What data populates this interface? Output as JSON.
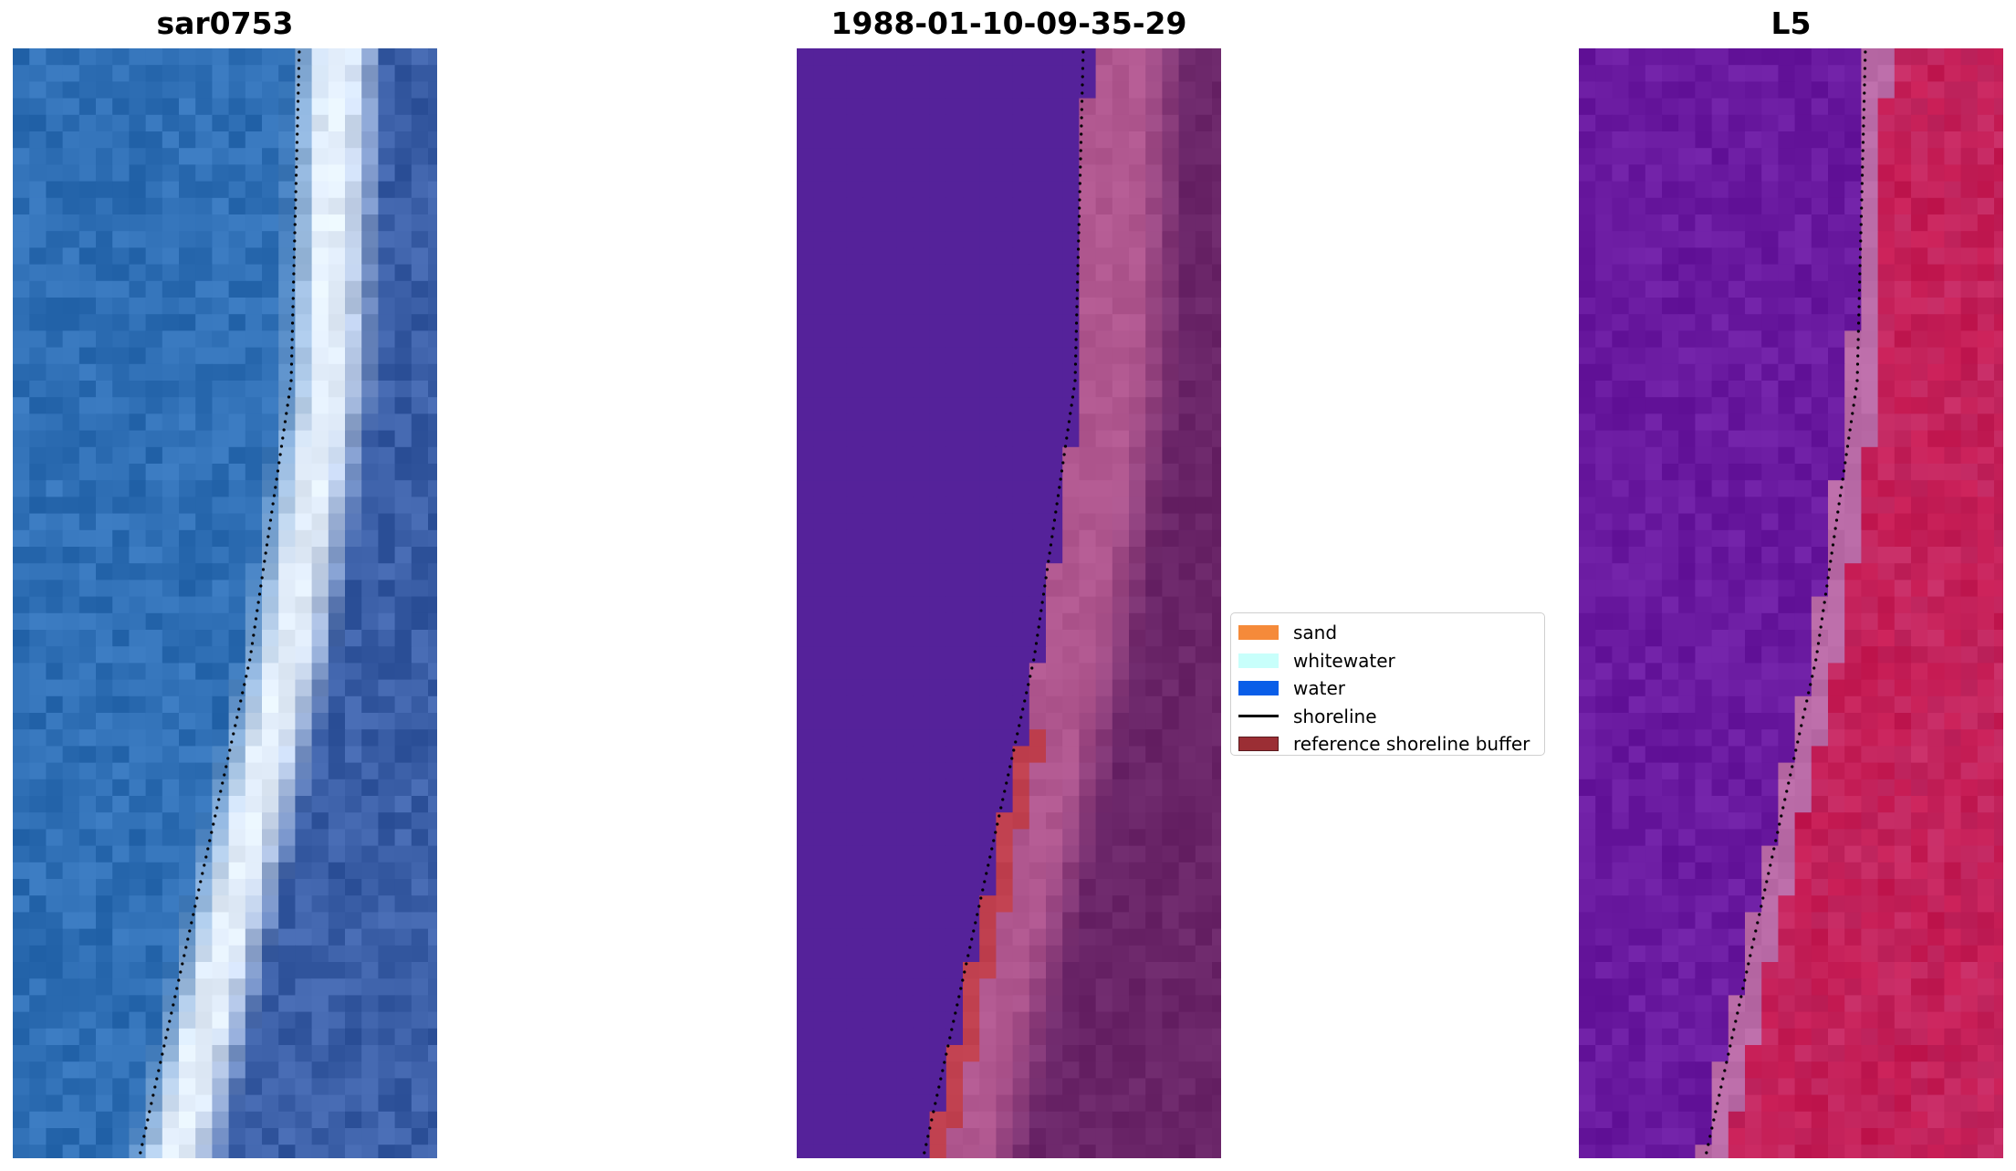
{
  "panels": [
    {
      "id": "sar",
      "title": "sar0753"
    },
    {
      "id": "classified",
      "title": "1988-01-10-09-35-29"
    },
    {
      "id": "index",
      "title": "L5"
    }
  ],
  "legend": {
    "items": [
      {
        "label": "sand",
        "color": "#f58a3a",
        "kind": "patch"
      },
      {
        "label": "whitewater",
        "color": "#c8fffb",
        "kind": "patch"
      },
      {
        "label": "water",
        "color": "#0a5ee8",
        "kind": "patch"
      },
      {
        "label": "shoreline",
        "color": "#000000",
        "kind": "line"
      },
      {
        "label": "reference shoreline buffer",
        "color": "#9b2e34",
        "kind": "patch"
      }
    ]
  },
  "colors": {
    "sar_water": "#2f6fb5",
    "sar_whitewater": "#e3eefb",
    "sar_land": "#3a5ea6",
    "class_water": "#55229a",
    "class_sand": "#b0578f",
    "class_land": "#6a2568",
    "class_buffer": "#c0404f",
    "index_water": "#6a1aa0",
    "index_edge": "#b96aa6",
    "index_land": "#c51a52"
  }
}
